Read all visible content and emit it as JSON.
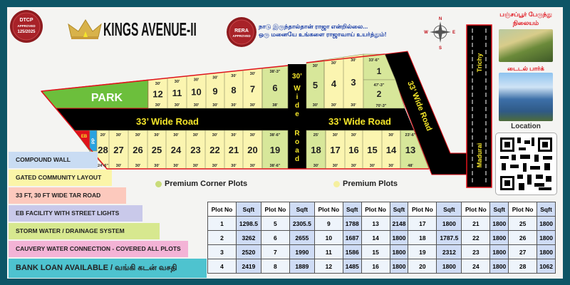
{
  "header": {
    "title": "KINGS AVENUE-II",
    "dtcp_seal": {
      "line1": "DTCP",
      "line2": "APPROVED",
      "line3": "125/2025"
    },
    "rera_seal": {
      "line1": "RERA",
      "line2": "APPROVED"
    },
    "tagline_line1": "நாடு இருந்தால்தான் ராஜா என்றில்லை...",
    "tagline_line2": "ஒரு மனையே உங்களை ராஜாவாய் உயர்த்தும்!"
  },
  "compass": {
    "n": "N",
    "s": "S",
    "e": "E",
    "w": "W"
  },
  "map": {
    "park": "PARK",
    "road_33_left": "33’ Wide Road",
    "road_33_right": "33’ Wide Road",
    "road_30": "30’",
    "road_30_vertical": [
      "W",
      "i",
      "d",
      "e",
      "R",
      "o",
      "a",
      "d"
    ],
    "road_diagonal": "33’ Wide Road",
    "highway_north": "Trichy",
    "highway_south": "Madurai",
    "eb": "EB",
    "pp": "PP",
    "rows": [
      {
        "plots": [
          "12",
          "11",
          "10",
          "9",
          "8",
          "7",
          "6"
        ],
        "top": [
          "30'",
          "30'",
          "30'",
          "30'",
          "30'",
          "30'",
          "38'-3\""
        ],
        "bottom": [
          "30'",
          "30'",
          "30'",
          "30'",
          "30'",
          "30'",
          "38'"
        ]
      },
      {
        "plots": [
          "28",
          "27",
          "26",
          "25",
          "24",
          "23",
          "22",
          "21",
          "20",
          "19"
        ],
        "top": [
          "20'",
          "30'",
          "30'",
          "30'",
          "30'",
          "30'",
          "30'",
          "30'",
          "30'",
          "38'-6\""
        ],
        "bottom": [
          "24'-6\"",
          "30'",
          "30'",
          "30'",
          "30'",
          "30'",
          "30'",
          "30'",
          "30'",
          "38'-6\""
        ]
      },
      {
        "plots": [
          "5",
          "4",
          "3"
        ],
        "top": [
          "30'",
          "30'",
          "30'"
        ],
        "bottom": [
          "30'",
          "30'",
          "30'"
        ]
      },
      {
        "plots": [
          "18",
          "17",
          "16",
          "15",
          "14",
          "13"
        ],
        "top": [
          "25'",
          "30'",
          "30'",
          "",
          "30'",
          "23'-6\""
        ],
        "bottom": [
          "30'",
          "30'",
          "30'",
          "30'",
          "30'",
          "48'"
        ]
      }
    ],
    "plot_1": {
      "number": "1",
      "top": "33'-6\""
    },
    "plot_2": {
      "number": "2",
      "top": "47'-3\"",
      "bottom": "70'-3\""
    },
    "colors": {
      "plot": "#fbf5b0",
      "corner_plot": "#d7e79a",
      "park": "#6cbf3c",
      "road": "#000000",
      "border": "#e0121b"
    }
  },
  "legend": {
    "corner": {
      "label": "Premium Corner Plots",
      "color": "#c9dc7a"
    },
    "premium": {
      "label": "Premium Plots",
      "color": "#f5ef9e"
    }
  },
  "features": [
    {
      "label": "COMPOUND WALL",
      "color": "#c9dcf3"
    },
    {
      "label": "GATED COMMUNITY LAYOUT",
      "color": "#fbf5a8"
    },
    {
      "label": "33 FT, 30 FT WIDE TAR ROAD",
      "color": "#fcc9bd"
    },
    {
      "label": "EB FACILITY WITH STREET LIGHTS",
      "color": "#c9c9ea"
    },
    {
      "label": "STORM WATER / DRAINAGE SYSTEM",
      "color": "#d7e88f"
    },
    {
      "label": "CAUVERY WATER CONNECTION - COVERED ALL PLOTS",
      "color": "#f3b3d6"
    },
    {
      "label": "BANK LOAN AVAILABLE / வங்கி கடன் வசதி",
      "color": "#4ec3cf"
    }
  ],
  "sidebar": {
    "landmark1": "பஞ்சப்பூர் பேருந்து நிலையம்",
    "landmark2": "டைடல் பார்க்",
    "location": "Location"
  },
  "table": {
    "header_plot": "Plot No",
    "header_sqft": "Sqft",
    "rows": [
      [
        [
          "1",
          "1298.5"
        ],
        [
          "5",
          "2305.5"
        ],
        [
          "9",
          "1788"
        ],
        [
          "13",
          "2148"
        ],
        [
          "17",
          "1800"
        ],
        [
          "21",
          "1800"
        ],
        [
          "25",
          "1800"
        ]
      ],
      [
        [
          "2",
          "3262"
        ],
        [
          "6",
          "2655"
        ],
        [
          "10",
          "1687"
        ],
        [
          "14",
          "1800"
        ],
        [
          "18",
          "1787.5"
        ],
        [
          "22",
          "1800"
        ],
        [
          "26",
          "1800"
        ]
      ],
      [
        [
          "3",
          "2520"
        ],
        [
          "7",
          "1990"
        ],
        [
          "11",
          "1586"
        ],
        [
          "15",
          "1800"
        ],
        [
          "19",
          "2312"
        ],
        [
          "23",
          "1800"
        ],
        [
          "27",
          "1800"
        ]
      ],
      [
        [
          "4",
          "2419"
        ],
        [
          "8",
          "1889"
        ],
        [
          "12",
          "1485"
        ],
        [
          "16",
          "1800"
        ],
        [
          "20",
          "1800"
        ],
        [
          "24",
          "1800"
        ],
        [
          "28",
          "1062"
        ]
      ]
    ]
  }
}
